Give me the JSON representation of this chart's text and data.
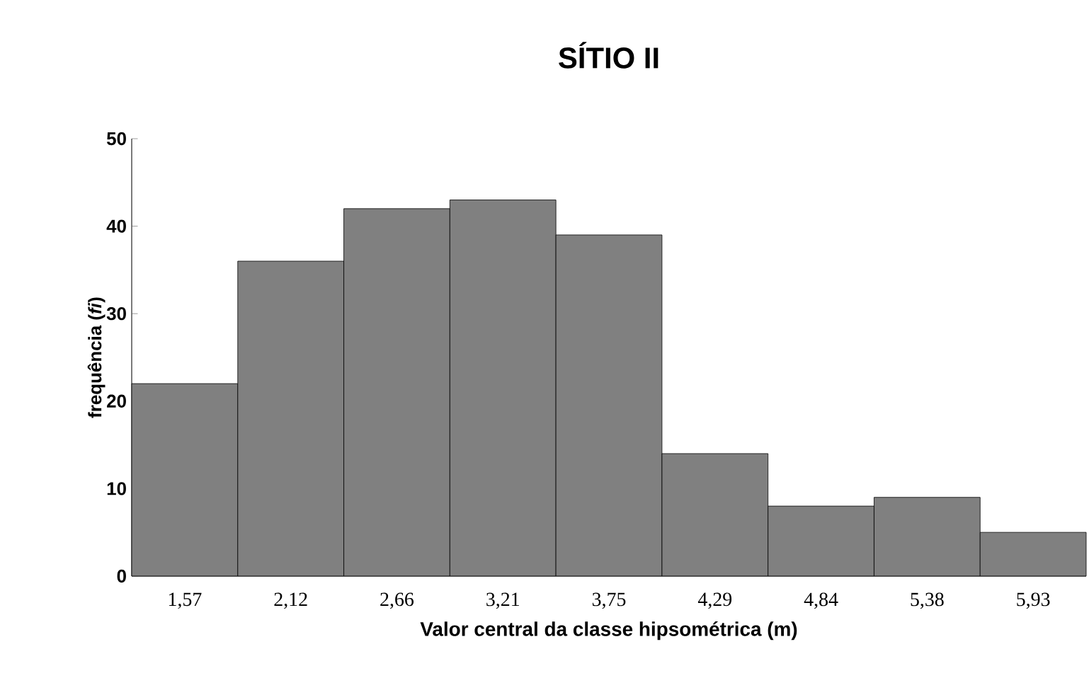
{
  "chart_data": {
    "type": "bar",
    "title": "SÍTIO II",
    "xlabel": "Valor central da classe hipsométrica (m)",
    "ylabel": "frequência (*fi*)",
    "categories": [
      "1,57",
      "2,12",
      "2,66",
      "3,21",
      "3,75",
      "4,29",
      "4,84",
      "5,38",
      "5,93"
    ],
    "values": [
      22,
      36,
      42,
      43,
      39,
      14,
      8,
      9,
      5
    ],
    "color": "#808080",
    "ylim": [
      0,
      50
    ],
    "yticks": [
      0,
      10,
      20,
      30,
      40,
      50
    ],
    "grid": false
  }
}
